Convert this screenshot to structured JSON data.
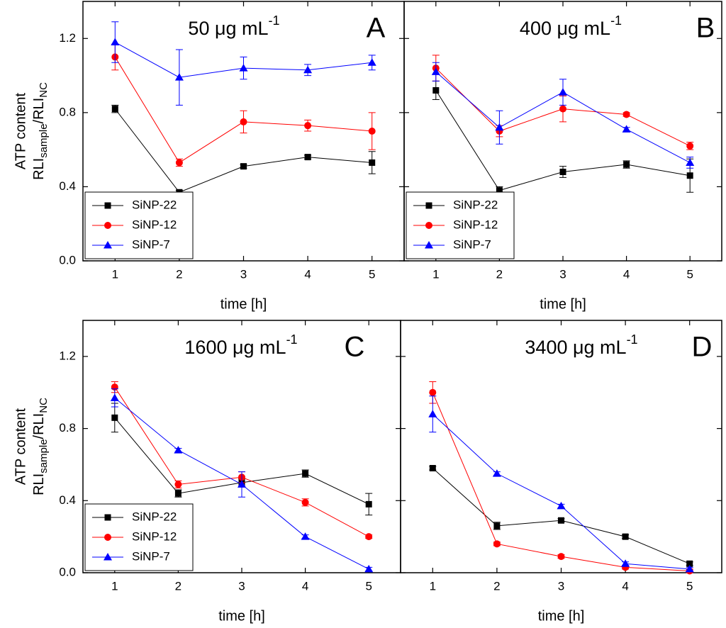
{
  "chart_data": [
    {
      "type": "line",
      "title": "50 μg mL",
      "title_sup": "-1",
      "label": "A",
      "ylabel": "ATP content",
      "ylabel2": [
        "RLI",
        "sample",
        "/RLI",
        "NC"
      ],
      "xlabel": "time [h]",
      "x": [
        1,
        2,
        3,
        4,
        5
      ],
      "xlim": [
        0.5,
        5.5
      ],
      "xticks": [
        1,
        2,
        3,
        4,
        5
      ],
      "ylim": [
        0,
        1.4
      ],
      "yticks": [
        {
          "value": 0,
          "label": "0.0"
        },
        {
          "value": 0.4,
          "label": "0.4"
        },
        {
          "value": 0.8,
          "label": "0.8"
        },
        {
          "value": 1.2,
          "label": "1.2"
        }
      ],
      "legend": "lower left",
      "series": [
        {
          "name": "SiNP-22",
          "color": "#000000",
          "marker": "square",
          "values": [
            0.82,
            0.37,
            0.51,
            0.56,
            0.53
          ],
          "errors": [
            0.02,
            0.01,
            0.01,
            0.01,
            0.06
          ]
        },
        {
          "name": "SiNP-12",
          "color": "#ff0000",
          "marker": "circle",
          "values": [
            1.1,
            0.53,
            0.75,
            0.73,
            0.7
          ],
          "errors": [
            0.07,
            0.02,
            0.06,
            0.03,
            0.1
          ]
        },
        {
          "name": "SiNP-7",
          "color": "#0000ff",
          "marker": "triangle",
          "values": [
            1.18,
            0.99,
            1.04,
            1.03,
            1.07
          ],
          "errors": [
            0.11,
            0.15,
            0.06,
            0.03,
            0.04
          ]
        }
      ]
    },
    {
      "type": "line",
      "title": "400 μg mL",
      "title_sup": "-1",
      "label": "B",
      "xlabel": "time [h]",
      "x": [
        1,
        2,
        3,
        4,
        5
      ],
      "xlim": [
        0.5,
        5.5
      ],
      "xticks": [
        1,
        2,
        3,
        4,
        5
      ],
      "ylim": [
        0,
        1.4
      ],
      "yticks": [
        0,
        0.4,
        0.8,
        1.2
      ],
      "legend": "lower left",
      "series": [
        {
          "name": "SiNP-22",
          "color": "#000000",
          "marker": "square",
          "values": [
            0.92,
            0.38,
            0.48,
            0.52,
            0.46
          ],
          "errors": [
            0.05,
            0.02,
            0.03,
            0.02,
            0.09
          ]
        },
        {
          "name": "SiNP-12",
          "color": "#ff0000",
          "marker": "circle",
          "values": [
            1.04,
            0.7,
            0.82,
            0.79,
            0.62
          ],
          "errors": [
            0.07,
            0.03,
            0.07,
            0.01,
            0.02
          ]
        },
        {
          "name": "SiNP-7",
          "color": "#0000ff",
          "marker": "triangle",
          "values": [
            1.02,
            0.72,
            0.91,
            0.71,
            0.53
          ],
          "errors": [
            0.05,
            0.09,
            0.07,
            0.01,
            0.03
          ]
        }
      ]
    },
    {
      "type": "line",
      "title": "1600 μg mL",
      "title_sup": "-1",
      "label": "C",
      "ylabel": "ATP content",
      "ylabel2": [
        "RLI",
        "sample",
        "/RLI",
        "NC"
      ],
      "xlabel": "time [h]",
      "x": [
        1,
        2,
        3,
        4,
        5
      ],
      "xlim": [
        0.5,
        5.5
      ],
      "xticks": [
        1,
        2,
        3,
        4,
        5
      ],
      "ylim": [
        0,
        1.4
      ],
      "yticks": [
        {
          "value": 0,
          "label": "0.0"
        },
        {
          "value": 0.4,
          "label": "0.4"
        },
        {
          "value": 0.8,
          "label": "0.8"
        },
        {
          "value": 1.2,
          "label": "1.2"
        }
      ],
      "legend": "lower left",
      "series": [
        {
          "name": "SiNP-22",
          "color": "#000000",
          "marker": "square",
          "values": [
            0.86,
            0.44,
            0.5,
            0.55,
            0.38
          ],
          "errors": [
            0.08,
            0.02,
            0.02,
            0.02,
            0.06
          ]
        },
        {
          "name": "SiNP-12",
          "color": "#ff0000",
          "marker": "circle",
          "values": [
            1.03,
            0.49,
            0.53,
            0.39,
            0.2
          ],
          "errors": [
            0.03,
            0.02,
            0.03,
            0.02,
            0.01
          ]
        },
        {
          "name": "SiNP-7",
          "color": "#0000ff",
          "marker": "triangle",
          "values": [
            0.97,
            0.68,
            0.49,
            0.2,
            0.02
          ],
          "errors": [
            0.05,
            0.01,
            0.07,
            0.01,
            0.01
          ]
        }
      ]
    },
    {
      "type": "line",
      "title": "3400 μg mL",
      "title_sup": "-1",
      "label": "D",
      "xlabel": "time [h]",
      "x": [
        1,
        2,
        3,
        4,
        5
      ],
      "xlim": [
        0.5,
        5.5
      ],
      "xticks": [
        1,
        2,
        3,
        4,
        5
      ],
      "ylim": [
        0,
        1.4
      ],
      "yticks": [
        0,
        0.4,
        0.8,
        1.2
      ],
      "series": [
        {
          "name": "SiNP-22",
          "color": "#000000",
          "marker": "square",
          "values": [
            0.58,
            0.26,
            0.29,
            0.2,
            0.05
          ],
          "errors": [
            0.01,
            0.02,
            0.01,
            0.01,
            0.01
          ]
        },
        {
          "name": "SiNP-12",
          "color": "#ff0000",
          "marker": "circle",
          "values": [
            1.0,
            0.16,
            0.09,
            0.03,
            0.01
          ],
          "errors": [
            0.06,
            0.01,
            0.01,
            0.01,
            0.01
          ]
        },
        {
          "name": "SiNP-7",
          "color": "#0000ff",
          "marker": "triangle",
          "values": [
            0.88,
            0.55,
            0.37,
            0.05,
            0.02
          ],
          "errors": [
            0.1,
            0.01,
            0.01,
            0.01,
            0.01
          ]
        }
      ]
    }
  ]
}
